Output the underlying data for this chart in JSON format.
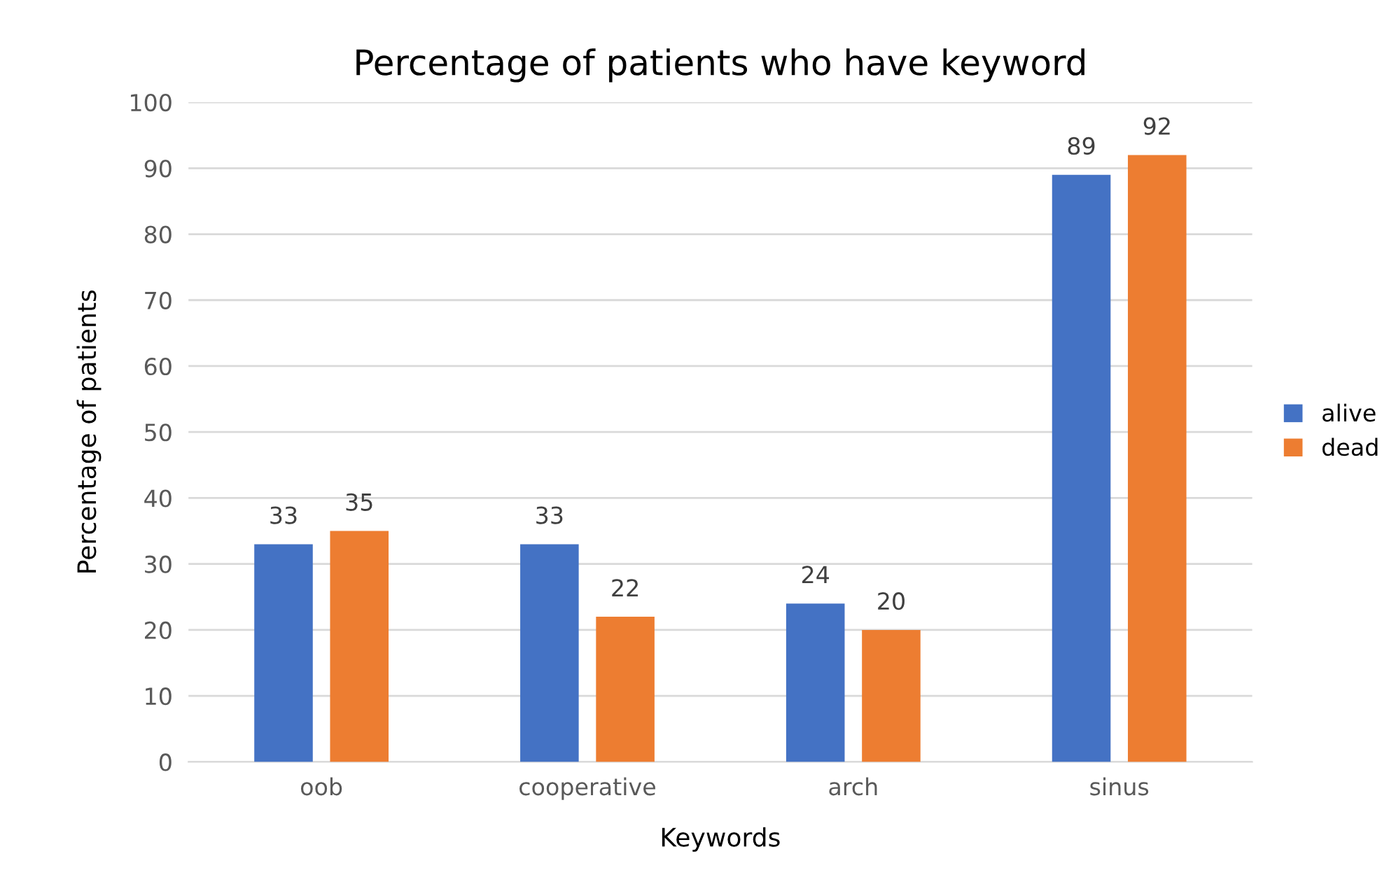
{
  "chart_data": {
    "type": "bar",
    "title": "Percentage of patients who have keyword",
    "xlabel": "Keywords",
    "ylabel": "Percentage of patients",
    "categories": [
      "oob",
      "cooperative",
      "arch",
      "sinus"
    ],
    "series": [
      {
        "name": "alive",
        "color": "#4472c4",
        "values": [
          33,
          33,
          24,
          89
        ]
      },
      {
        "name": "dead",
        "color": "#ed7d31",
        "values": [
          35,
          22,
          20,
          92
        ]
      }
    ],
    "ylim": [
      0,
      100
    ],
    "yticks": [
      0,
      10,
      20,
      30,
      40,
      50,
      60,
      70,
      80,
      90,
      100
    ],
    "grid": "y",
    "legend": "right",
    "data_labels": true
  }
}
